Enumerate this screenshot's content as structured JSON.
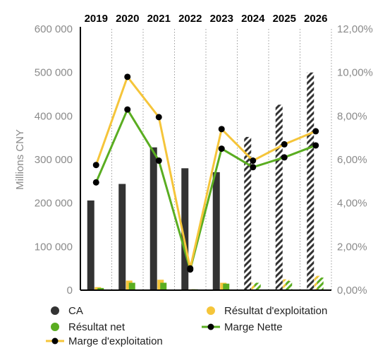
{
  "chart_data": {
    "type": "bar",
    "categories": [
      "2019",
      "2020",
      "2021",
      "2022",
      "2023",
      "2024",
      "2025",
      "2026"
    ],
    "forecast_from": "2024",
    "ylabel": "Millions CNY",
    "ylim": [
      0,
      600000
    ],
    "yticks": [
      "0",
      "100 000",
      "200 000",
      "300 000",
      "400 000",
      "500 000",
      "600 000"
    ],
    "y2lim": [
      0,
      12
    ],
    "y2ticks": [
      "0,00%",
      "2,00%",
      "4,00%",
      "6,00%",
      "8,00%",
      "10,00%",
      "12,00%"
    ],
    "legend_position": "bottom",
    "series": [
      {
        "name": "CA",
        "kind": "bar",
        "axis": "left",
        "color": "#333333",
        "values": [
          206000,
          244000,
          328000,
          280000,
          271000,
          352000,
          426000,
          500000
        ]
      },
      {
        "name": "Résultat d'exploitation",
        "kind": "bar",
        "axis": "left",
        "color": "#f5c53a",
        "values": [
          7000,
          22000,
          24000,
          2000,
          17000,
          17000,
          25000,
          33000
        ]
      },
      {
        "name": "Résultat net",
        "kind": "bar",
        "axis": "left",
        "color": "#5aad21",
        "values": [
          5000,
          17000,
          17000,
          2000,
          15000,
          17000,
          21000,
          29000
        ]
      },
      {
        "name": "Marge Nette",
        "kind": "line",
        "axis": "right",
        "color": "#5aad21",
        "values": [
          4.95,
          8.3,
          5.95,
          0.95,
          6.5,
          5.65,
          6.1,
          6.65
        ]
      },
      {
        "name": "Marge d'exploitation",
        "kind": "line",
        "axis": "right",
        "color": "#f5c53a",
        "values": [
          5.75,
          9.8,
          7.95,
          1.0,
          7.4,
          5.95,
          6.7,
          7.3
        ]
      }
    ]
  }
}
